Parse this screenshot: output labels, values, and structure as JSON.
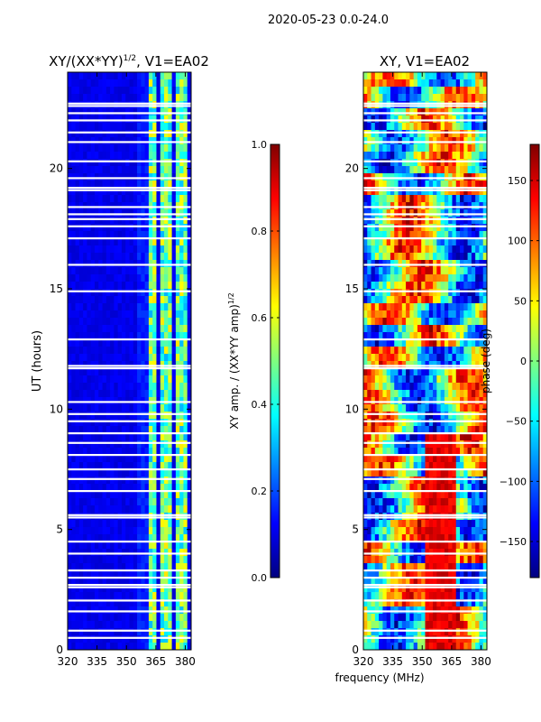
{
  "suptitle": "2020-05-23 0.0-24.0",
  "shared_xlabel": "frequency (MHz)",
  "chart_data": [
    {
      "type": "heatmap",
      "title_main": "XY/(XX*YY)",
      "title_exp": "1/2",
      "title_tail": ", V1=EA02",
      "ylabel": "UT (hours)",
      "xlim": [
        320,
        383
      ],
      "ylim": [
        0,
        24
      ],
      "x_ticks": [
        320,
        335,
        350,
        365,
        380
      ],
      "y_ticks": [
        0,
        5,
        10,
        15,
        20
      ],
      "colorbar": {
        "label_main": "XY amp. / (XX*YY amp)",
        "label_exp": "1/2",
        "range": [
          0.0,
          1.0
        ],
        "ticks": [
          "0.0",
          "0.2",
          "0.4",
          "0.6",
          "0.8",
          "1.0"
        ],
        "tick_values": [
          0.0,
          0.2,
          0.4,
          0.6,
          0.8,
          1.0
        ]
      },
      "bright_bands_mhz": [
        [
          362,
          366
        ],
        [
          367,
          371
        ],
        [
          372,
          374
        ],
        [
          375,
          379
        ],
        [
          380,
          382
        ]
      ],
      "flagged_hours": [
        0.5,
        0.8,
        1.6,
        2.05,
        2.6,
        2.7,
        3.0,
        3.3,
        4.0,
        4.5,
        5.5,
        5.6,
        6.6,
        7.1,
        7.5,
        8.1,
        8.6,
        9.0,
        9.5,
        9.8,
        10.3,
        11.7,
        11.8,
        12.9,
        14.9,
        16.0,
        17.1,
        17.6,
        17.9,
        18.1,
        18.4,
        19.1,
        19.2,
        19.6,
        20.3,
        21.1,
        21.5,
        22.0,
        22.3,
        22.6,
        22.7
      ]
    },
    {
      "type": "heatmap",
      "title": "XY, V1=EA02",
      "xlim": [
        320,
        383
      ],
      "ylim": [
        0,
        24
      ],
      "x_ticks": [
        320,
        335,
        350,
        365,
        380
      ],
      "y_ticks": [
        0,
        5,
        10,
        15,
        20
      ],
      "colorbar": {
        "label": "phase (deg)",
        "range": [
          -180,
          180
        ],
        "ticks": [
          "−150",
          "−100",
          "−50",
          "0",
          "50",
          "100",
          "150"
        ],
        "tick_values": [
          -150,
          -100,
          -50,
          0,
          50,
          100,
          150
        ]
      },
      "flagged_hours": [
        0.5,
        0.8,
        1.6,
        2.05,
        2.6,
        2.7,
        3.0,
        3.3,
        4.0,
        4.5,
        5.5,
        5.6,
        6.6,
        7.1,
        7.5,
        8.1,
        8.6,
        9.0,
        9.5,
        9.8,
        10.3,
        11.7,
        11.8,
        12.9,
        14.9,
        16.0,
        17.1,
        17.6,
        17.9,
        18.1,
        18.4,
        19.1,
        19.2,
        19.6,
        20.3,
        21.1,
        21.5,
        22.0,
        22.3,
        22.6,
        22.7
      ]
    }
  ]
}
